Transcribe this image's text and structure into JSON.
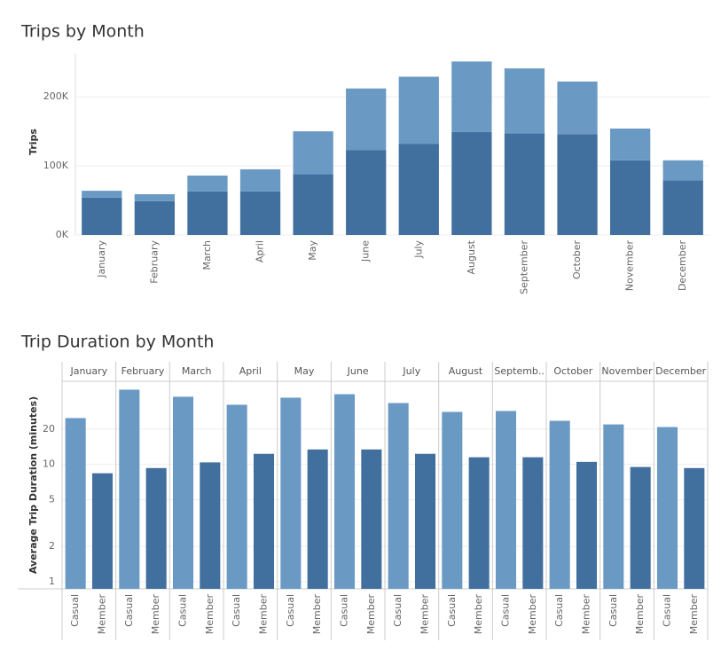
{
  "chart_data": [
    {
      "type": "stacked_bar",
      "title": "Trips by Month",
      "y_label": "Trips",
      "categories": [
        "January",
        "February",
        "March",
        "April",
        "May",
        "June",
        "July",
        "August",
        "September",
        "October",
        "November",
        "December"
      ],
      "series": [
        {
          "color": "#41709f",
          "values": [
            54000,
            49000,
            63000,
            63000,
            88000,
            123000,
            132000,
            149000,
            147000,
            146000,
            108000,
            79000
          ]
        },
        {
          "color": "#6a9ac4",
          "values": [
            10000,
            10000,
            23000,
            32000,
            62000,
            89000,
            97000,
            102000,
            94000,
            76000,
            46000,
            29000
          ]
        }
      ],
      "ylim": [
        0,
        263000
      ],
      "yticks": [
        {
          "value": 0,
          "label": "0K"
        },
        {
          "value": 100000,
          "label": "100K"
        },
        {
          "value": 200000,
          "label": "200K"
        }
      ],
      "grid": true
    },
    {
      "type": "faceted_bar",
      "title": "Trip Duration by Month",
      "y_label": "Average Trip Duration (minutes)",
      "facets": [
        "January",
        "February",
        "March",
        "April",
        "May",
        "June",
        "July",
        "August",
        "Septemb..",
        "October",
        "November",
        "December"
      ],
      "series": [
        {
          "name": "Casual",
          "color": "#6a9ac4",
          "values": [
            24.8,
            43.3,
            37.7,
            32.2,
            37.0,
            39.6,
            33.3,
            28.0,
            28.5,
            23.5,
            21.9,
            20.8
          ]
        },
        {
          "name": "Member",
          "color": "#41709f",
          "values": [
            8.4,
            9.3,
            10.4,
            12.3,
            13.4,
            13.4,
            12.3,
            11.5,
            11.5,
            10.5,
            9.5,
            9.3
          ]
        }
      ],
      "ylim": [
        0.87,
        51
      ],
      "yticks": [
        1,
        2,
        5,
        10,
        20
      ],
      "log_scale": true,
      "grid": true
    }
  ]
}
